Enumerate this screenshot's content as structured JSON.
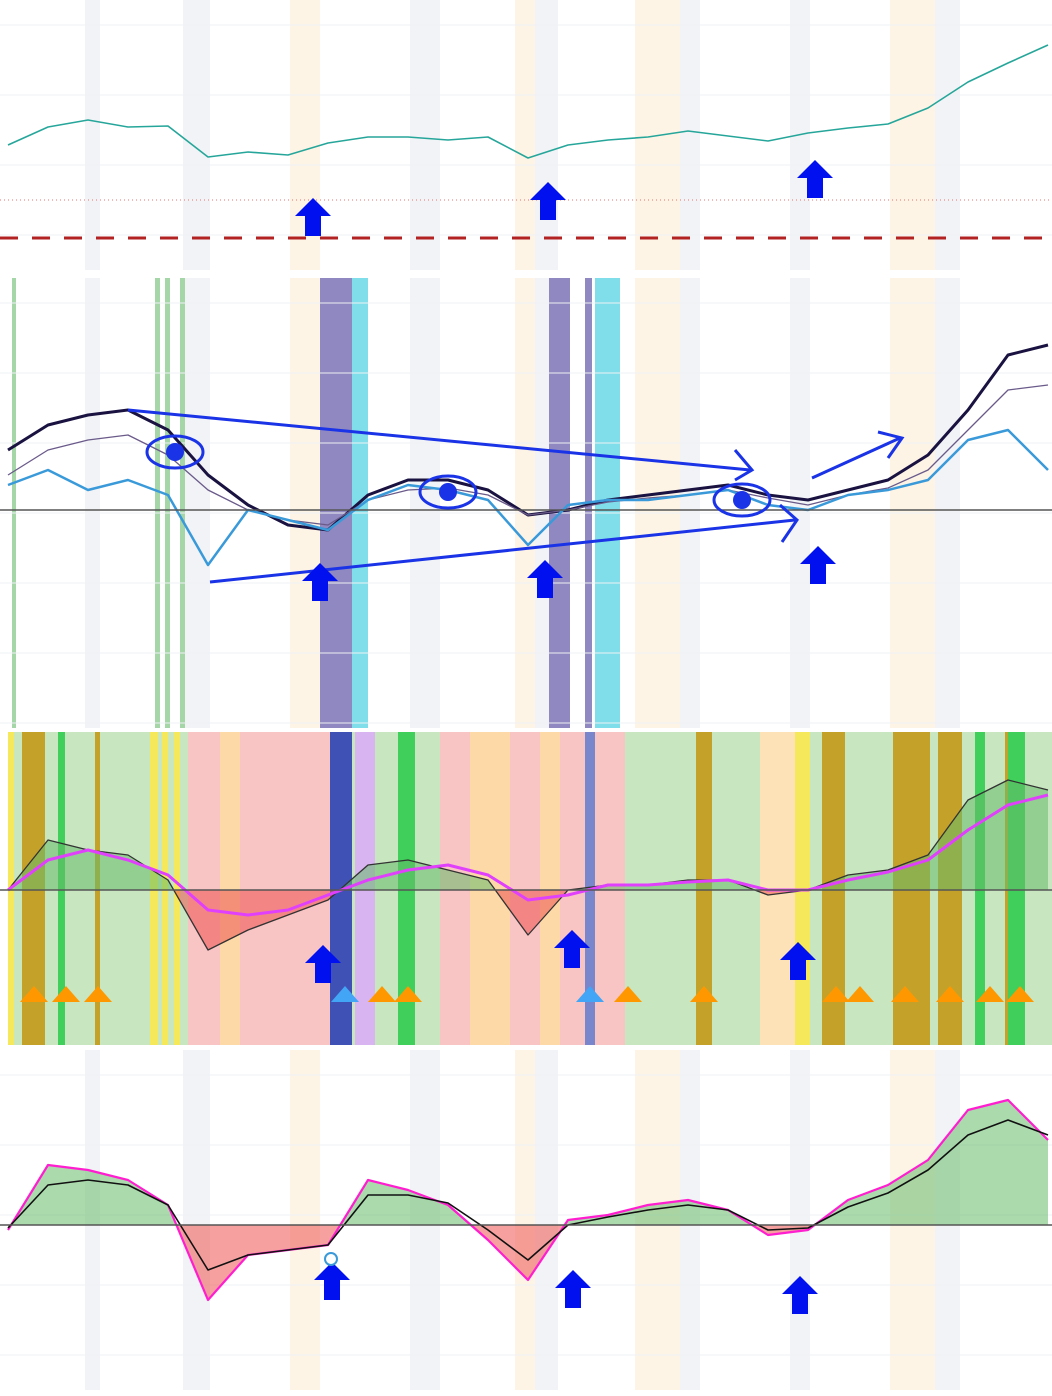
{
  "chart_data": [
    {
      "type": "line",
      "ylim": [
        0,
        270
      ],
      "series": [
        {
          "color": "#26a69a",
          "width": 1.6,
          "values": [
            125,
            143,
            150,
            143,
            144,
            113,
            118,
            115,
            127,
            133,
            133,
            130,
            133,
            112,
            125,
            130,
            133,
            139,
            134,
            129,
            137,
            142,
            146,
            162,
            188,
            207,
            225
          ]
        }
      ],
      "reference_lines": [
        {
          "value": 70,
          "color": "#e57373",
          "style": "dotted"
        },
        {
          "value": 32,
          "color": "#b22222",
          "style": "dashed"
        }
      ]
    },
    {
      "type": "line",
      "ylim": [
        -218,
        232
      ],
      "series": [
        {
          "color": "#1a1240",
          "width": 3,
          "values": [
            60,
            85,
            95,
            100,
            80,
            35,
            5,
            -15,
            -20,
            15,
            30,
            30,
            20,
            -5,
            0,
            10,
            15,
            20,
            25,
            15,
            10,
            20,
            30,
            55,
            100,
            155,
            165
          ]
        },
        {
          "color": "#6a5a8a",
          "width": 1.3,
          "values": [
            35,
            60,
            70,
            75,
            55,
            20,
            0,
            -10,
            -15,
            10,
            20,
            22,
            15,
            -5,
            0,
            8,
            12,
            15,
            20,
            12,
            5,
            15,
            22,
            40,
            80,
            120,
            125
          ]
        },
        {
          "color": "#3a9ad9",
          "width": 2.5,
          "values": [
            25,
            40,
            20,
            30,
            15,
            -55,
            0,
            -10,
            -20,
            10,
            25,
            20,
            10,
            -35,
            5,
            10,
            10,
            15,
            20,
            5,
            0,
            15,
            20,
            30,
            70,
            80,
            40
          ]
        }
      ]
    },
    {
      "type": "area",
      "ylim": [
        -155,
        158
      ],
      "series": [
        {
          "color": "#333333",
          "width": 1.3,
          "fill": true,
          "values": [
            0,
            50,
            40,
            35,
            10,
            -60,
            -40,
            -25,
            -10,
            25,
            30,
            20,
            10,
            -45,
            0,
            5,
            5,
            10,
            10,
            -5,
            0,
            15,
            20,
            35,
            90,
            110,
            100
          ]
        },
        {
          "color": "#e040fb",
          "width": 3,
          "values": [
            0,
            30,
            40,
            30,
            15,
            -20,
            -25,
            -20,
            -5,
            10,
            20,
            25,
            15,
            -10,
            -5,
            5,
            5,
            8,
            10,
            0,
            0,
            10,
            18,
            30,
            60,
            85,
            95
          ]
        }
      ]
    },
    {
      "type": "area",
      "ylim": [
        -165,
        175
      ],
      "series": [
        {
          "color": "#ff1ecf",
          "width": 2.2,
          "fill": true,
          "values": [
            -5,
            60,
            55,
            45,
            20,
            -75,
            -30,
            -25,
            -20,
            45,
            35,
            20,
            -15,
            -55,
            5,
            10,
            20,
            25,
            15,
            -10,
            -5,
            25,
            40,
            65,
            115,
            125,
            85
          ]
        },
        {
          "color": "#111111",
          "width": 1.6,
          "values": [
            -3,
            40,
            45,
            40,
            20,
            -45,
            -30,
            -25,
            -20,
            30,
            30,
            22,
            -5,
            -35,
            0,
            8,
            15,
            20,
            15,
            -5,
            -3,
            18,
            32,
            55,
            90,
            105,
            90
          ]
        }
      ]
    }
  ]
}
